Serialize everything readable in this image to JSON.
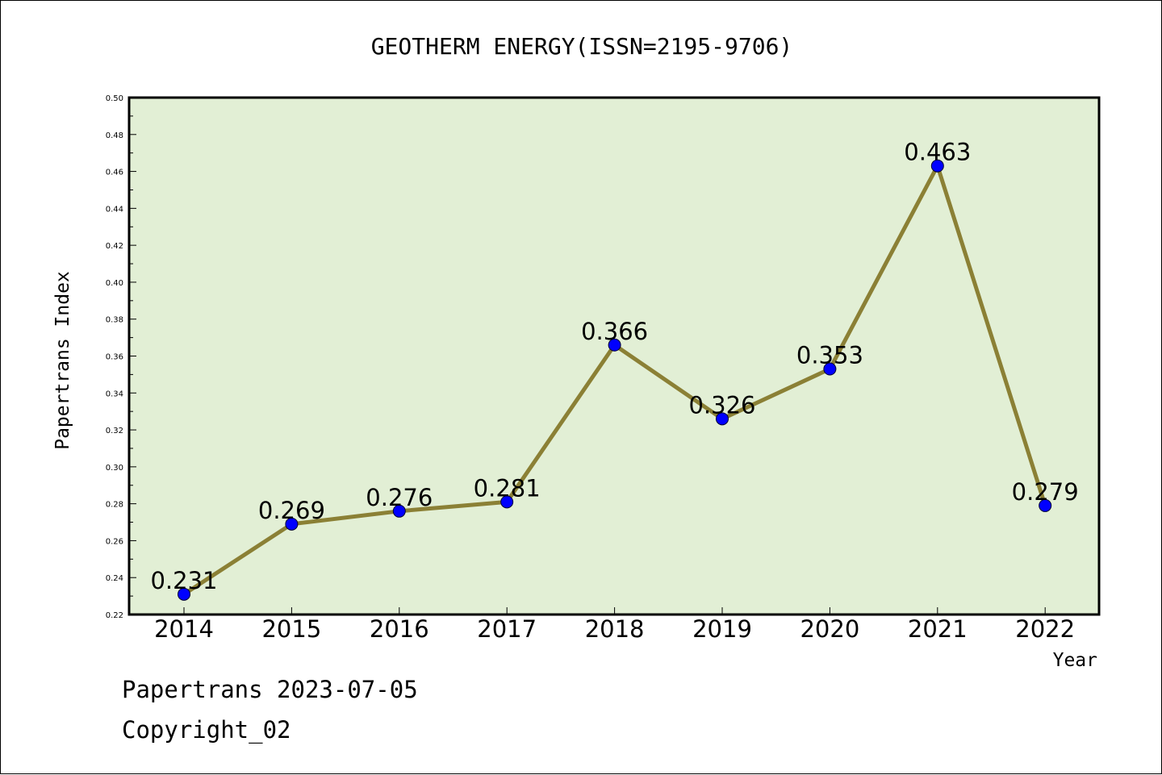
{
  "chart_data": {
    "type": "line",
    "title": "GEOTHERM ENERGY(ISSN=2195-9706)",
    "xlabel": "Year",
    "ylabel": "Papertrans Index",
    "categories": [
      "2014",
      "2015",
      "2016",
      "2017",
      "2018",
      "2019",
      "2020",
      "2021",
      "2022"
    ],
    "values": [
      0.231,
      0.269,
      0.276,
      0.281,
      0.366,
      0.326,
      0.353,
      0.463,
      0.279
    ],
    "data_labels": [
      "0.231",
      "0.269",
      "0.276",
      "0.281",
      "0.366",
      "0.326",
      "0.353",
      "0.463",
      "0.279"
    ],
    "ylim": [
      0.22,
      0.5
    ],
    "yticks": [
      "0.22",
      "0.24",
      "0.26",
      "0.28",
      "0.30",
      "0.32",
      "0.34",
      "0.36",
      "0.38",
      "0.40",
      "0.42",
      "0.44",
      "0.46",
      "0.48",
      "0.50"
    ],
    "grid": false,
    "legend": "none",
    "colors": {
      "plot_background": "#e2efd5",
      "line": "#8b8035",
      "marker": "#0000ff"
    }
  },
  "footer": {
    "source": "Papertrans 2023-07-05",
    "copyright": "Copyright_02"
  }
}
